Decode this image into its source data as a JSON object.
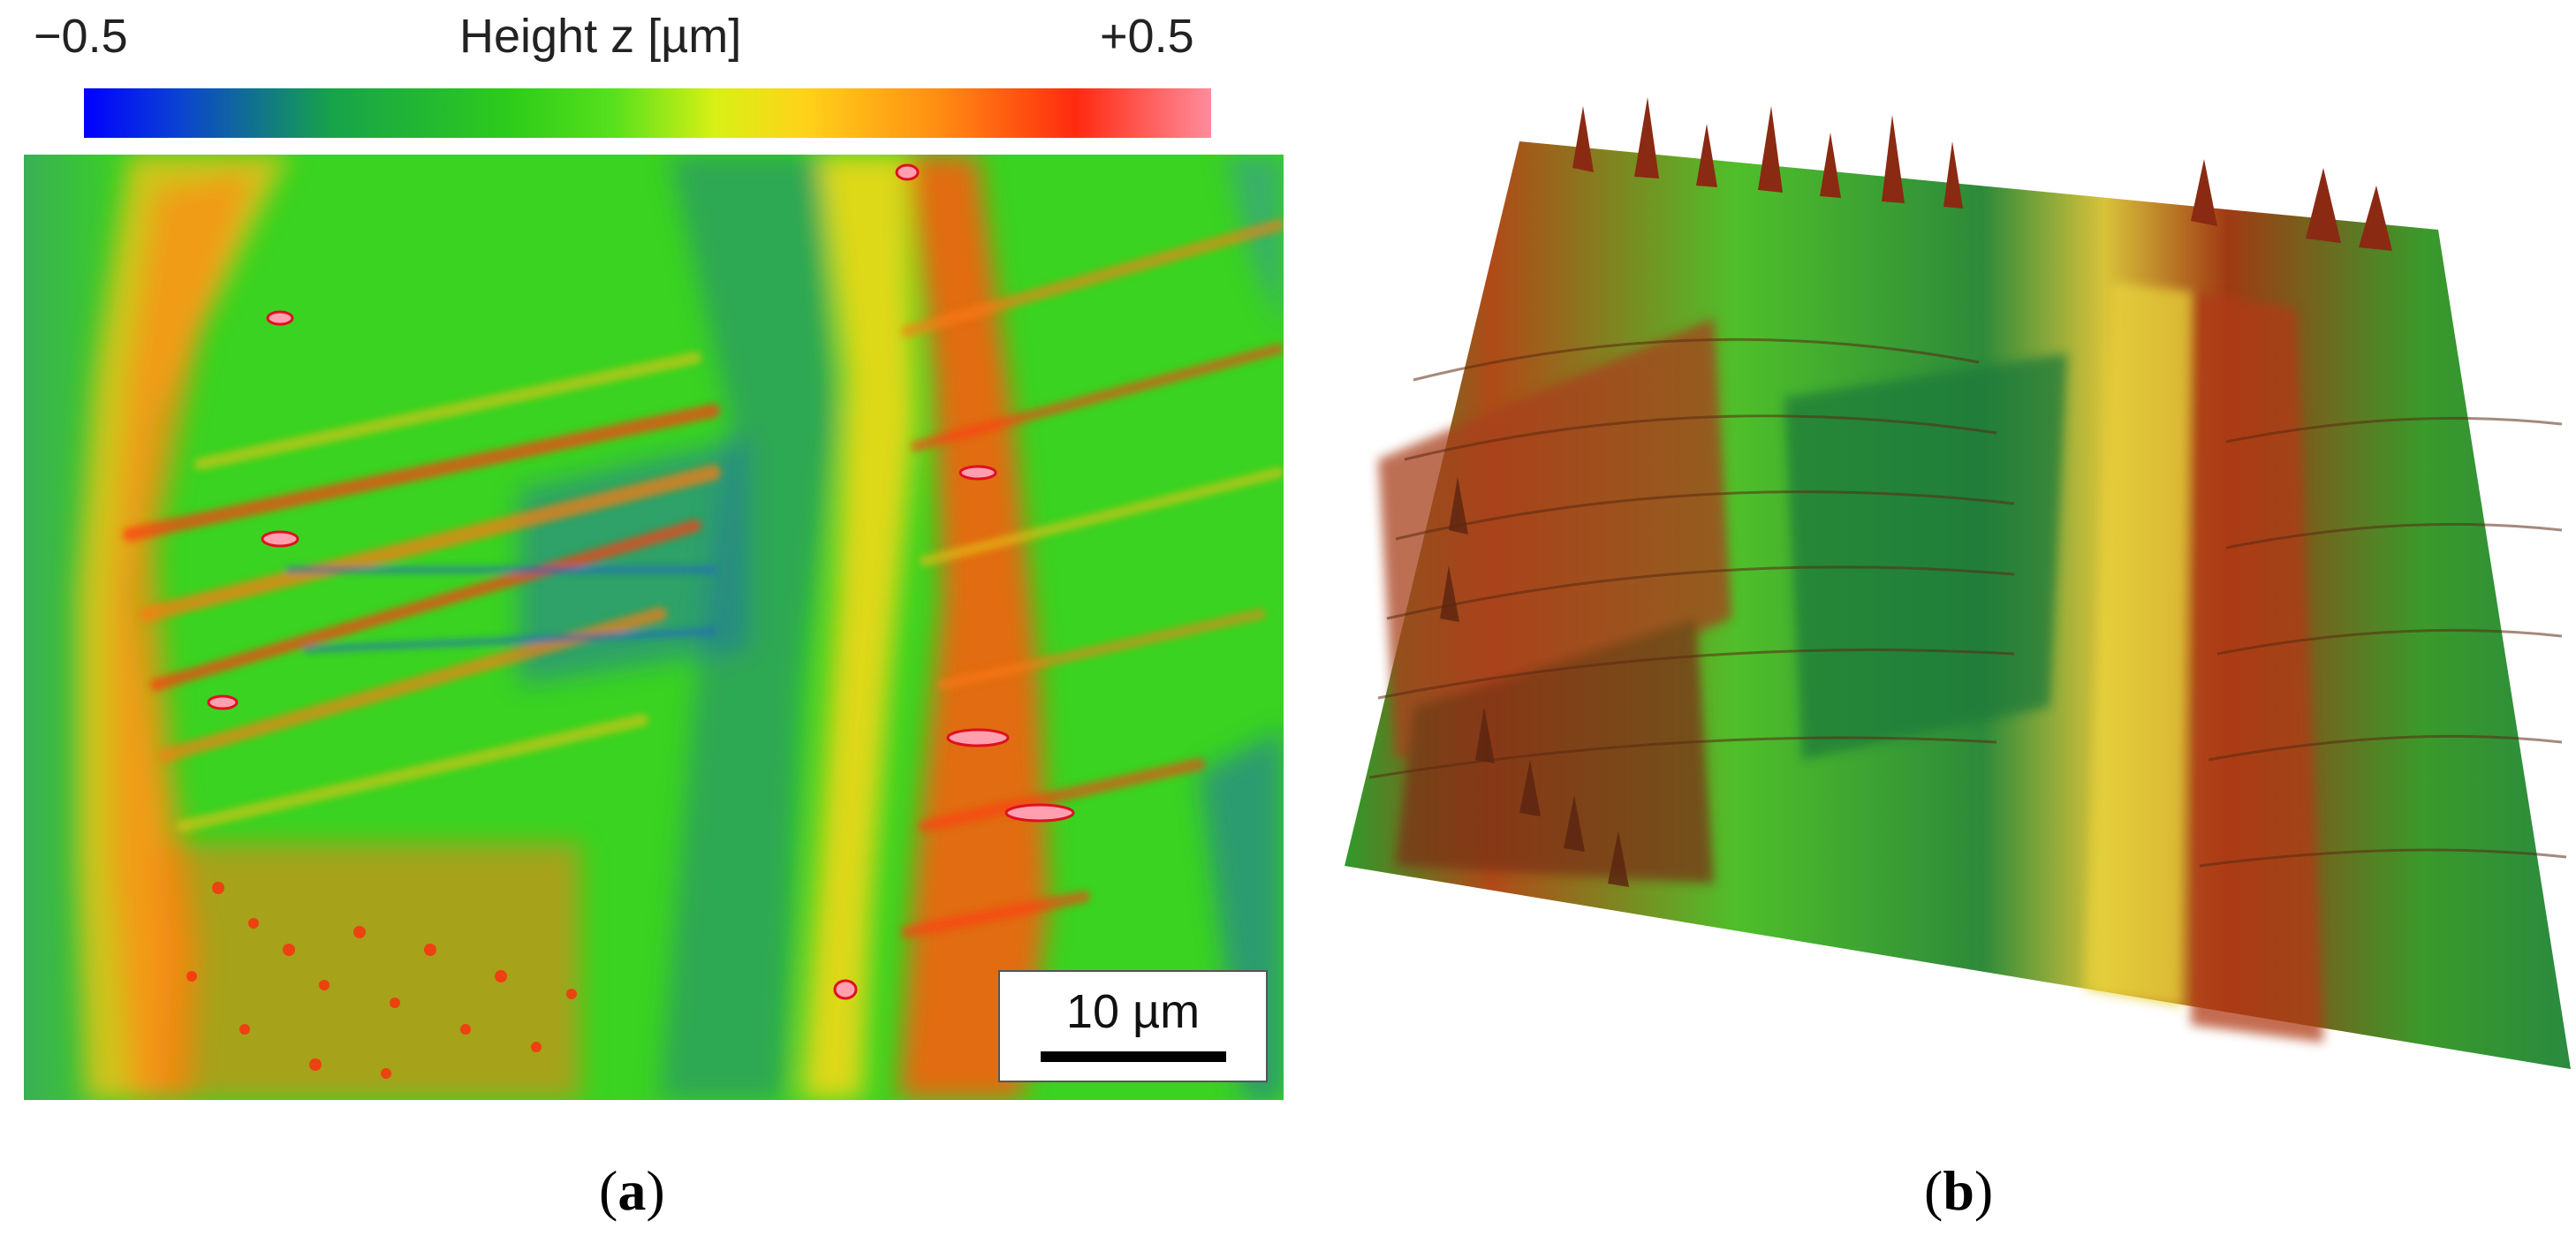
{
  "colorbar": {
    "min_label": "−0.5",
    "title": "Height z [µm]",
    "max_label": "+0.5",
    "colors": [
      "#0000ff",
      "#2ecc1a",
      "#ffd21a",
      "#ff2a10",
      "#ff8c9c"
    ]
  },
  "scale_bar": {
    "label": "10 µm"
  },
  "captions": {
    "a": {
      "open": "(",
      "letter": "a",
      "close": ")"
    },
    "b": {
      "open": "(",
      "letter": "b",
      "close": ")"
    }
  },
  "panels": {
    "a": {
      "kind": "2D height map"
    },
    "b": {
      "kind": "3D surface rendering"
    }
  }
}
